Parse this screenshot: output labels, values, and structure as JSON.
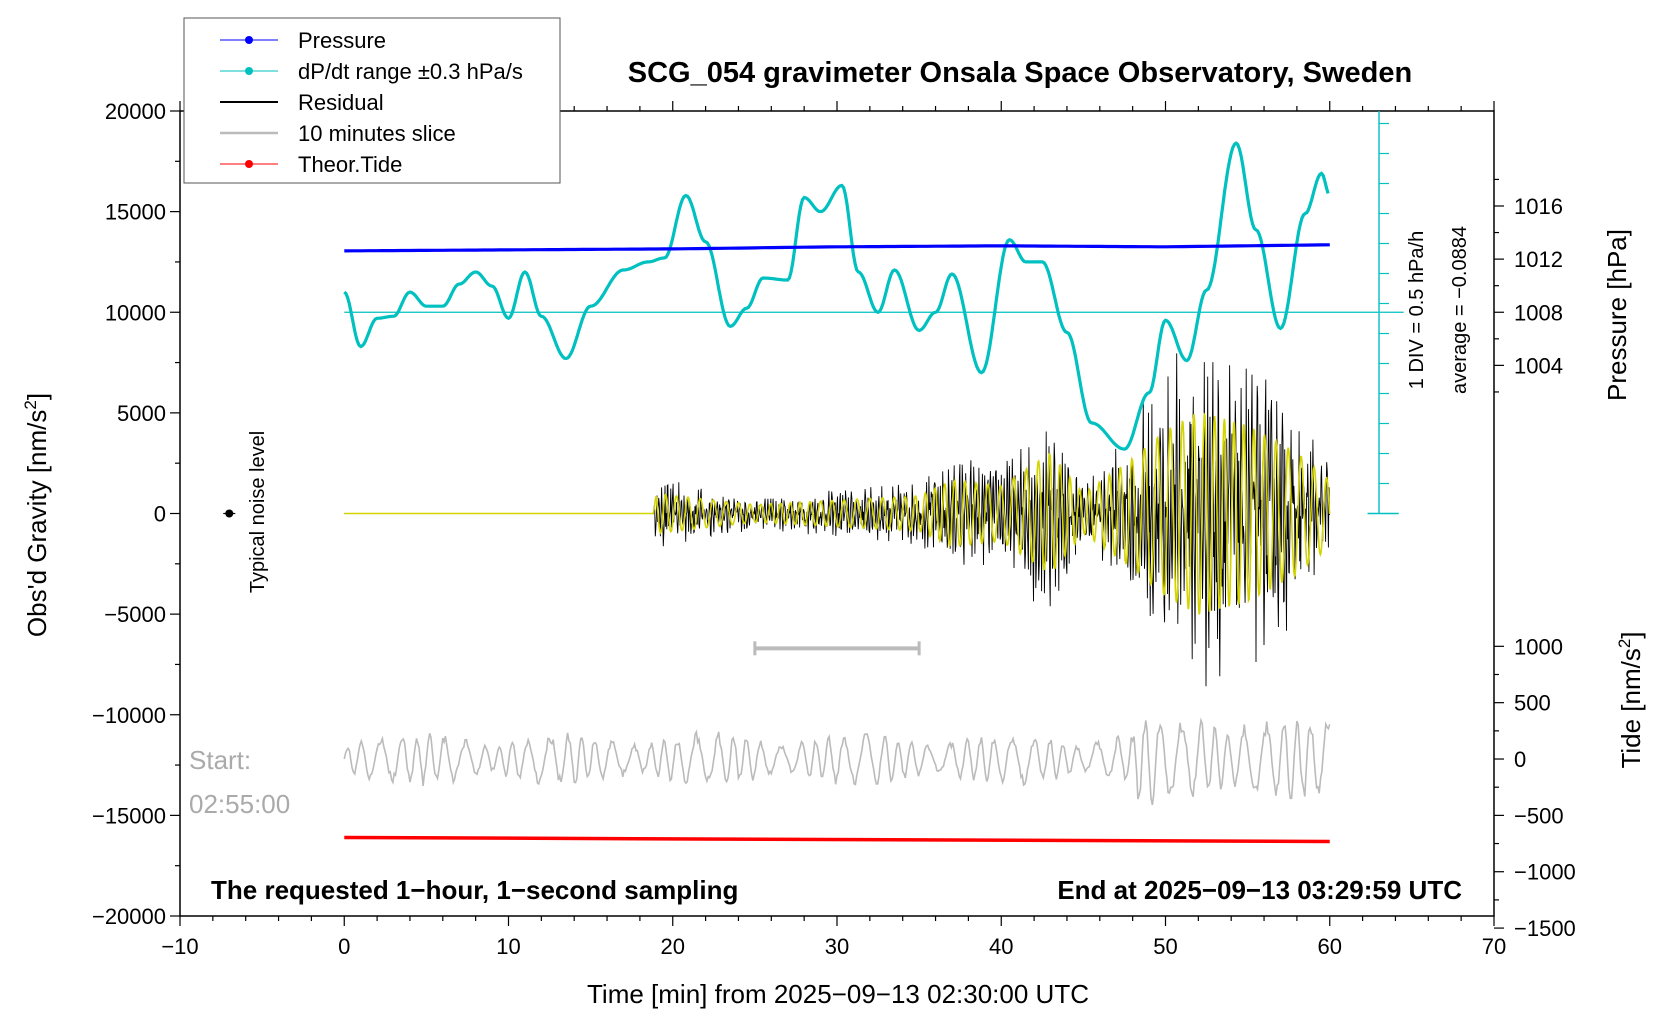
{
  "chart_data": {
    "type": "line",
    "title": "SCG_054 gravimeter Onsala Space Observatory, Sweden",
    "xlabel": "Time [min] from 2025−09−13 02:30:00 UTC",
    "ylabel": "Obs'd Gravity [nm/s",
    "ylabel_sup": "2",
    "ylabel_end": "]",
    "right_top_label": "Pressure [hPa]",
    "right_bottom_label": "Tide [nm/s",
    "right_bottom_sup": "2",
    "right_bottom_end": "]",
    "xlim": [
      -10,
      70
    ],
    "ylim": [
      -20000,
      20000
    ],
    "x_ticks": [
      -10,
      0,
      10,
      20,
      30,
      40,
      50,
      60,
      70
    ],
    "x_tick_labels": [
      "−10",
      "0",
      "10",
      "20",
      "30",
      "40",
      "50",
      "60",
      "70"
    ],
    "y_ticks": [
      20000,
      15000,
      10000,
      5000,
      0,
      -5000,
      -10000,
      -15000,
      -20000
    ],
    "y_tick_labels": [
      "20000",
      "15000",
      "10000",
      "5000",
      "0",
      "−5000",
      "−10000",
      "−15000",
      "−20000"
    ],
    "pressure_ticks": [
      1016,
      1012,
      1008,
      1004
    ],
    "pressure_tick_labels": [
      "1016",
      "1012",
      "1008",
      "1004"
    ],
    "tide_ticks": [
      1000,
      500,
      0,
      -500,
      -1000,
      -1500
    ],
    "tide_tick_labels": [
      "1000",
      "500",
      "0",
      "−500",
      "−1000",
      "−1500"
    ],
    "legend": [
      {
        "label": "Pressure",
        "color": "#0000ff",
        "marker": true
      },
      {
        "label": "dP/dt range ±0.3 hPa/s",
        "color": "#00c0c0",
        "marker": true
      },
      {
        "label": "Residual",
        "color": "#000000",
        "marker": false
      },
      {
        "label": "10 minutes slice",
        "color": "#bbbbbb",
        "marker": false
      },
      {
        "label": "Theor.Tide",
        "color": "#ff0000",
        "marker": true
      }
    ],
    "dpdt_scale_label": "1 DIV = 0.5 hPa/h",
    "dpdt_average_label": "average = −0.0884",
    "noise_label": "Typical noise level",
    "start_label": "Start:",
    "start_time": "02:55:00",
    "footer_left": "The requested 1−hour, 1−second sampling",
    "footer_right": "End at 2025−09−13 03:29:59 UTC",
    "pressure_series": {
      "name": "Pressure",
      "x": [
        0,
        10,
        20,
        30,
        40,
        50,
        60
      ],
      "values_gravity_units": [
        13050,
        13100,
        13150,
        13250,
        13300,
        13250,
        13350
      ]
    },
    "dpdt_series": {
      "name": "dP/dt",
      "x": [
        0,
        1,
        2,
        3,
        4,
        5,
        6,
        7,
        8,
        9,
        10,
        11,
        12,
        13.5,
        15,
        17,
        18.5,
        19.5,
        20.8,
        22,
        23.5,
        24.5,
        25.5,
        27,
        28,
        29,
        30.3,
        31.3,
        32.5,
        33.5,
        35,
        36,
        37,
        38.8,
        40.5,
        41.5,
        42.5,
        44,
        45.5,
        47.5,
        49,
        50,
        51.3,
        52.5,
        54.3,
        55.5,
        57,
        58.5,
        59.5,
        60
      ],
      "values": [
        11000,
        8300,
        9700,
        9800,
        11000,
        10300,
        10300,
        11400,
        12000,
        11300,
        9700,
        12000,
        9800,
        7700,
        10300,
        12100,
        12500,
        12700,
        15800,
        13500,
        9300,
        10200,
        11700,
        11600,
        15700,
        15000,
        16300,
        12000,
        10000,
        12100,
        9100,
        10000,
        11900,
        7000,
        13600,
        12500,
        12500,
        9000,
        4500,
        3200,
        6000,
        9600,
        7600,
        11100,
        18400,
        14100,
        9200,
        14900,
        16900,
        15800
      ]
    },
    "residual_envelope": {
      "name": "Residual",
      "x": [
        0,
        18.8,
        19,
        25,
        30,
        35,
        37,
        40,
        43,
        45,
        48,
        50,
        52,
        55,
        58,
        60
      ],
      "amplitude": [
        0,
        0,
        1800,
        800,
        1200,
        1600,
        3000,
        2500,
        5500,
        1800,
        5000,
        7500,
        9200,
        8000,
        5500,
        3000
      ]
    },
    "slice_bar": {
      "x_start": 25,
      "x_end": 35,
      "y": -6700
    },
    "gray_series_offset": -12200,
    "tide_series": {
      "name": "Theor.Tide",
      "x": [
        0,
        60
      ],
      "values_gravity_units": [
        -16100,
        -16300
      ]
    },
    "noise_point": {
      "x": -7,
      "y": 0
    }
  }
}
